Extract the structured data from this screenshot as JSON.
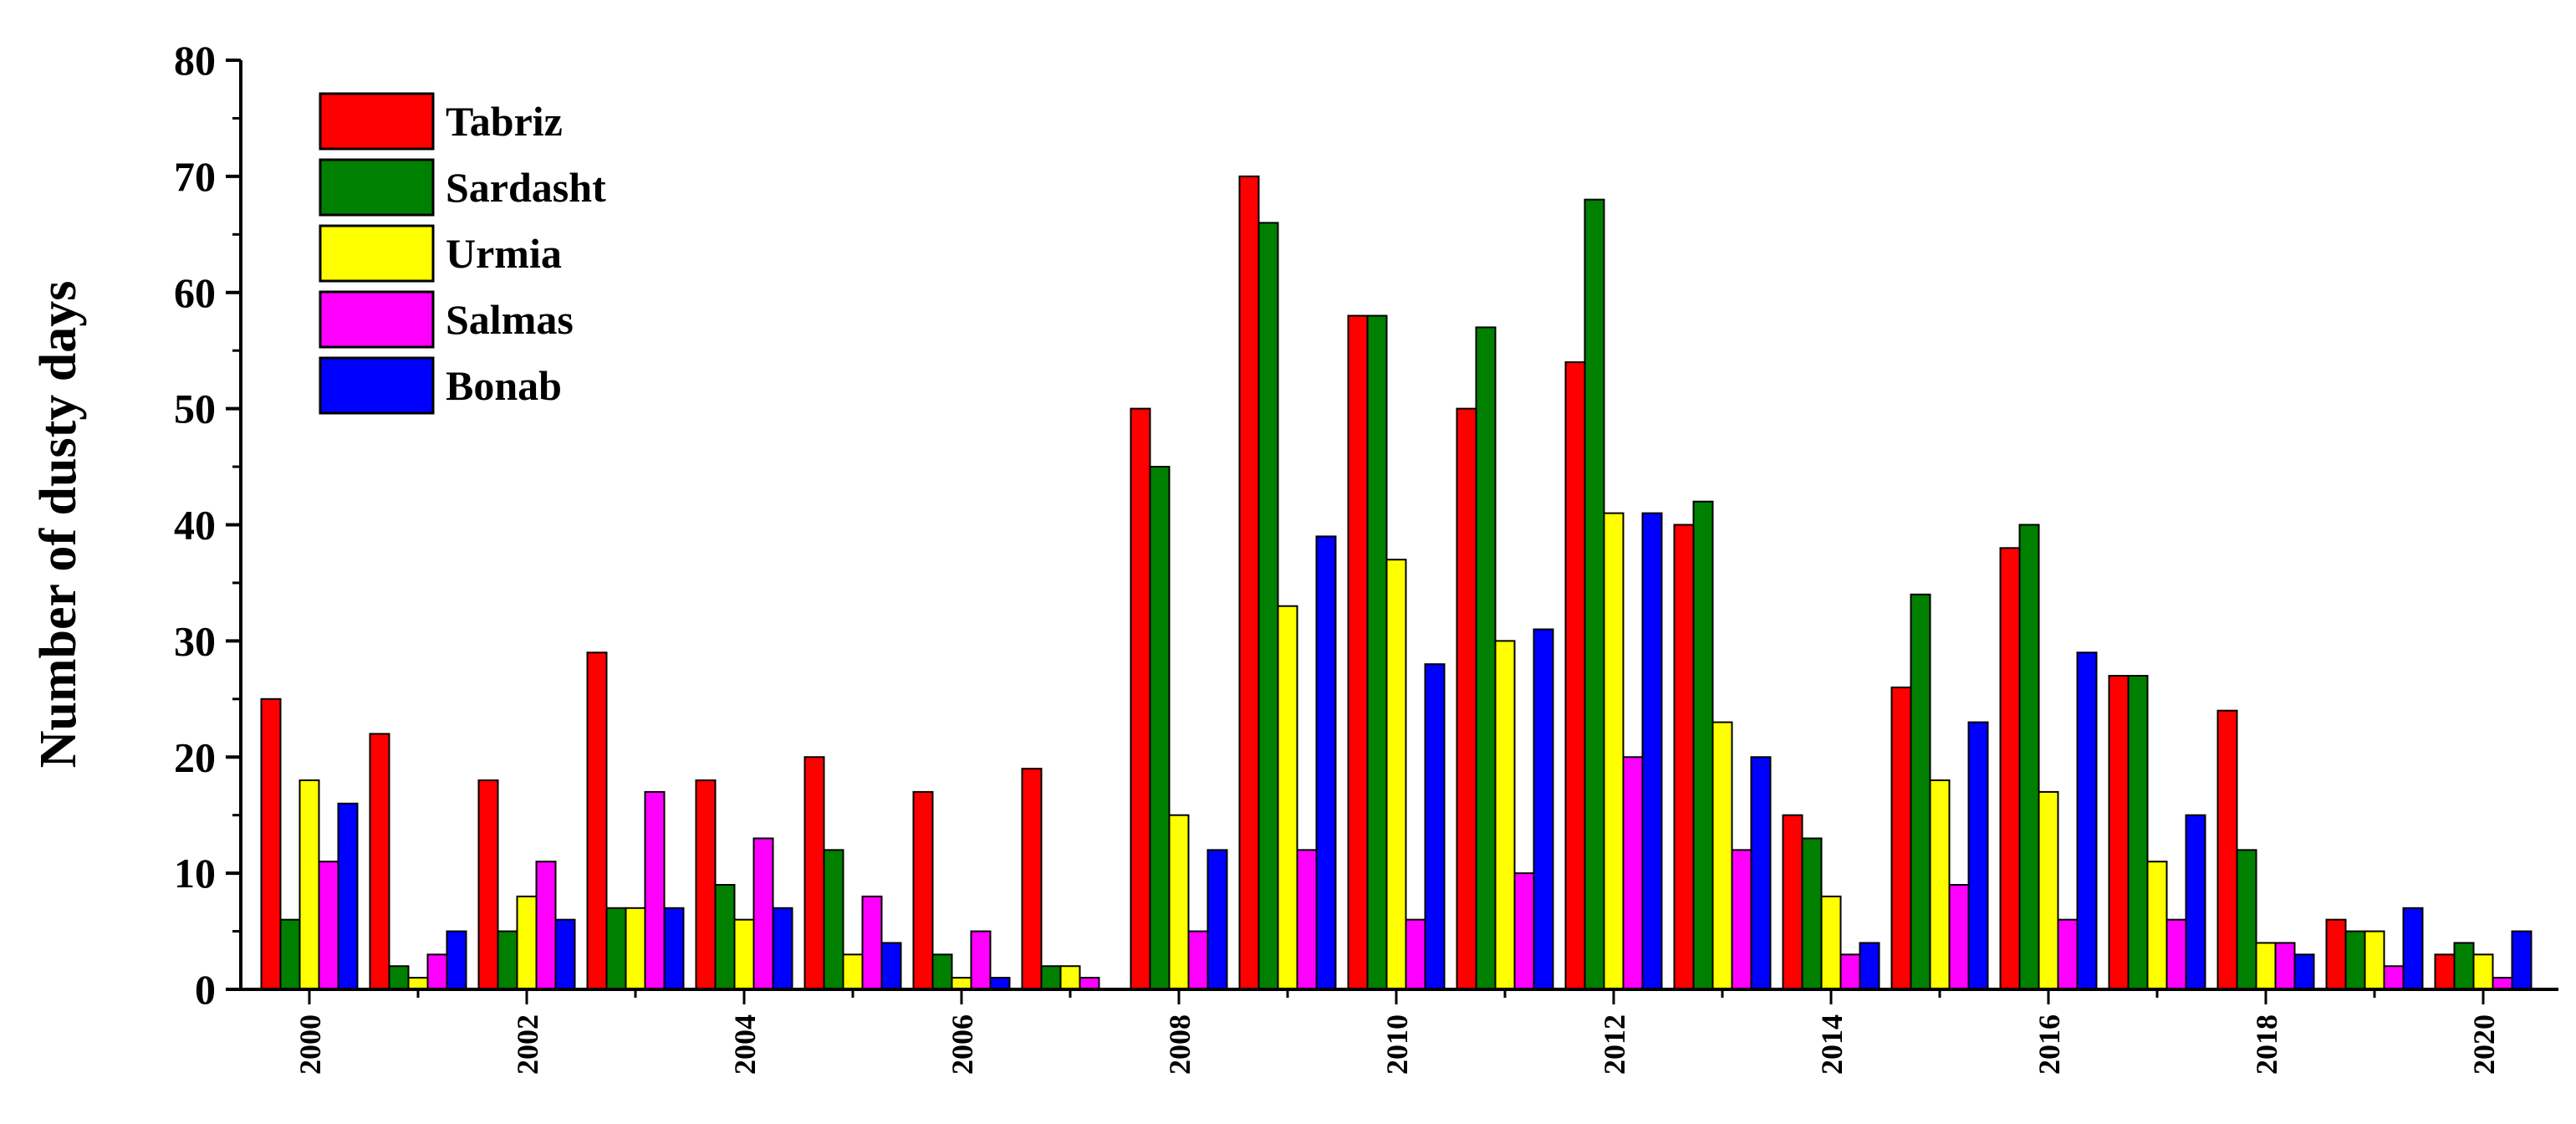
{
  "chart_data": {
    "type": "bar",
    "ylabel": "Number of dusty days",
    "xlabel": "",
    "ylim": [
      0,
      80
    ],
    "y_ticks": [
      0,
      10,
      20,
      30,
      40,
      50,
      60,
      70,
      80
    ],
    "categories": [
      "2000",
      "2001",
      "2002",
      "2003",
      "2004",
      "2005",
      "2006",
      "2007",
      "2008",
      "2009",
      "2010",
      "2011",
      "2012",
      "2013",
      "2014",
      "2015",
      "2016",
      "2017",
      "2018",
      "2019",
      "2020"
    ],
    "x_tick_labels": [
      "2000",
      "2002",
      "2004",
      "2006",
      "2008",
      "2010",
      "2012",
      "2014",
      "2016",
      "2018",
      "2020"
    ],
    "legend_position": "top-left",
    "grid": false,
    "series": [
      {
        "name": "Tabriz",
        "color": "#ff0000",
        "values": [
          25,
          22,
          18,
          29,
          18,
          20,
          17,
          19,
          50,
          70,
          58,
          50,
          54,
          40,
          15,
          26,
          38,
          27,
          24,
          6,
          3
        ]
      },
      {
        "name": "Sardasht",
        "color": "#008000",
        "values": [
          6,
          2,
          5,
          7,
          9,
          12,
          3,
          2,
          45,
          66,
          58,
          57,
          68,
          42,
          13,
          34,
          40,
          27,
          12,
          5,
          4
        ]
      },
      {
        "name": "Urmia",
        "color": "#ffff00",
        "values": [
          18,
          1,
          8,
          7,
          6,
          3,
          1,
          2,
          15,
          33,
          37,
          30,
          41,
          23,
          8,
          18,
          17,
          11,
          4,
          5,
          3
        ]
      },
      {
        "name": "Salmas",
        "color": "#ff00ff",
        "values": [
          11,
          3,
          11,
          17,
          13,
          8,
          5,
          1,
          5,
          12,
          6,
          10,
          20,
          12,
          3,
          9,
          6,
          6,
          4,
          2,
          1
        ]
      },
      {
        "name": "Bonab",
        "color": "#0000ff",
        "values": [
          16,
          5,
          6,
          7,
          7,
          4,
          1,
          0,
          12,
          39,
          28,
          31,
          41,
          20,
          4,
          23,
          29,
          15,
          3,
          7,
          5
        ]
      }
    ]
  }
}
